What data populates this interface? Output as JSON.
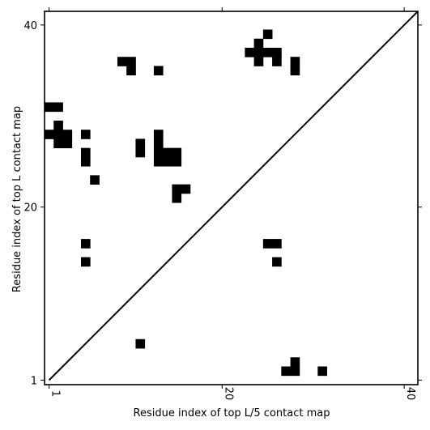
{
  "chart_data": {
    "type": "heatmap",
    "title": "",
    "xlabel": "Residue index of top L/5 contact map",
    "ylabel": "Residue index of top L contact map",
    "xlim": [
      0.5,
      41.5
    ],
    "ylim": [
      0.5,
      41.5
    ],
    "xticks": [
      1,
      20,
      40
    ],
    "yticks": [
      1,
      20,
      40
    ],
    "tick_labels": {
      "x": [
        "1",
        "20",
        "40"
      ],
      "y": [
        "1",
        "20",
        "40"
      ]
    },
    "diagonal_line": true,
    "grid": false,
    "colors": {
      "cell": "#000000",
      "background": "#ffffff",
      "line": "#000000"
    },
    "cells": [
      [
        25,
        39
      ],
      [
        24,
        38
      ],
      [
        23,
        37
      ],
      [
        24,
        37
      ],
      [
        25,
        37
      ],
      [
        26,
        37
      ],
      [
        24,
        36
      ],
      [
        26,
        36
      ],
      [
        9,
        36
      ],
      [
        10,
        36
      ],
      [
        10,
        35
      ],
      [
        13,
        35
      ],
      [
        28,
        36
      ],
      [
        28,
        35
      ],
      [
        1,
        31
      ],
      [
        2,
        31
      ],
      [
        2,
        29
      ],
      [
        1,
        28
      ],
      [
        2,
        28
      ],
      [
        3,
        28
      ],
      [
        5,
        28
      ],
      [
        2,
        27
      ],
      [
        3,
        27
      ],
      [
        13,
        28
      ],
      [
        11,
        27
      ],
      [
        13,
        27
      ],
      [
        11,
        26
      ],
      [
        13,
        26
      ],
      [
        14,
        26
      ],
      [
        15,
        26
      ],
      [
        5,
        26
      ],
      [
        13,
        25
      ],
      [
        14,
        25
      ],
      [
        15,
        25
      ],
      [
        5,
        25
      ],
      [
        6,
        23
      ],
      [
        15,
        22
      ],
      [
        16,
        22
      ],
      [
        15,
        21
      ],
      [
        5,
        16
      ],
      [
        25,
        16
      ],
      [
        26,
        16
      ],
      [
        5,
        14
      ],
      [
        26,
        14
      ],
      [
        11,
        5
      ],
      [
        28,
        3
      ],
      [
        27,
        2
      ],
      [
        28,
        2
      ],
      [
        31,
        2
      ]
    ]
  }
}
